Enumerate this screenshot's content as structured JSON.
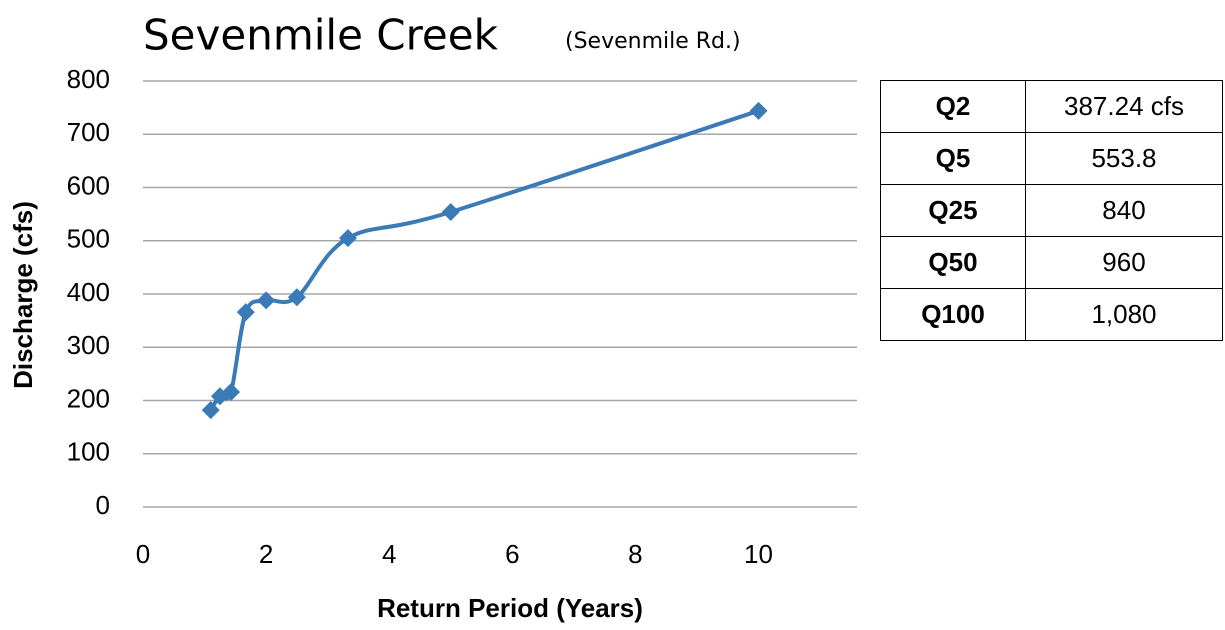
{
  "chart_data": {
    "type": "line",
    "title": "Sevenmile Creek",
    "subtitle": "(Sevenmile Rd.)",
    "x_label": "Return Period (Years)",
    "y_label": "Discharge (cfs)",
    "x": [
      1.1,
      1.25,
      1.43,
      1.67,
      2,
      2.5,
      3.33,
      5,
      10
    ],
    "series": [
      {
        "name": "Discharge",
        "color": "#3a7ab7",
        "values": [
          182,
          208,
          216,
          366,
          388,
          394,
          505,
          554,
          744
        ]
      }
    ],
    "xlim": [
      0,
      11.6
    ],
    "xticks": [
      0,
      2,
      4,
      6,
      8,
      10
    ],
    "ylim": [
      0,
      800
    ],
    "yticks": [
      0,
      100,
      200,
      300,
      400,
      500,
      600,
      700,
      800
    ],
    "grid": true
  },
  "table": {
    "rows": [
      [
        "Q2",
        "387.24 cfs"
      ],
      [
        "Q5",
        "553.8"
      ],
      [
        "Q25",
        "840"
      ],
      [
        "Q50",
        "960"
      ],
      [
        "Q100",
        "1,080"
      ]
    ]
  }
}
